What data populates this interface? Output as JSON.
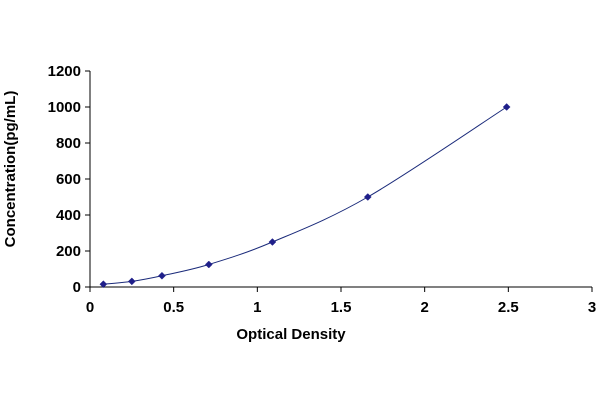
{
  "chart_data": {
    "type": "scatter",
    "title": "",
    "xlabel": "Optical Density",
    "ylabel": "Concentration(pg/mL)",
    "xlim": [
      0,
      3
    ],
    "ylim": [
      0,
      1200
    ],
    "x_ticks": [
      0,
      0.5,
      1,
      1.5,
      2,
      2.5,
      3
    ],
    "x_tick_labels": [
      "0",
      "0.5",
      "1",
      "1.5",
      "2",
      "2.5",
      "3"
    ],
    "y_ticks": [
      0,
      200,
      400,
      600,
      800,
      1000,
      1200
    ],
    "y_tick_labels": [
      "0",
      "200",
      "400",
      "600",
      "800",
      "1000",
      "1200"
    ],
    "grid": false,
    "legend": "none",
    "fit": "smooth curve through standards",
    "series": [
      {
        "x": [
          0.08,
          0.25,
          0.43,
          0.71,
          1.09,
          1.66,
          2.49
        ],
        "y": [
          15.6,
          31.2,
          62.5,
          125,
          250,
          500,
          1000
        ],
        "marker": "diamond",
        "color": "#1f1f8a"
      }
    ],
    "line_color": "#1a2a7a"
  }
}
